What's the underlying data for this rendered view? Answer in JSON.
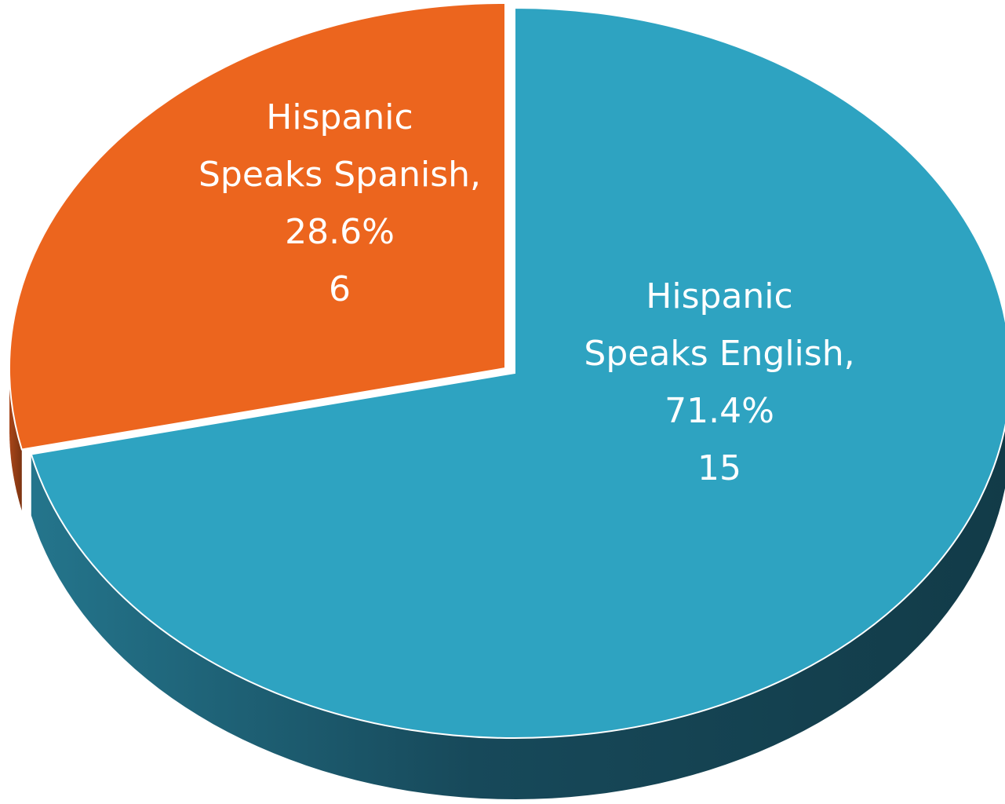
{
  "chart_data": {
    "type": "pie",
    "style": "3d-exploded",
    "title": "",
    "slices": [
      {
        "label_lines": [
          "Hispanic",
          "Speaks English,"
        ],
        "percent_label": "71.4%",
        "value": 15,
        "value_label": "15",
        "color": "#2ea3c1",
        "side_color": "#1a5f73"
      },
      {
        "label_lines": [
          "Hispanic",
          "Speaks Spanish,"
        ],
        "percent_label": "28.6%",
        "value": 6,
        "value_label": "6",
        "color": "#ec651e",
        "side_color": "#8c3a10"
      }
    ],
    "legend": "none",
    "data_labels": "inside slices"
  }
}
